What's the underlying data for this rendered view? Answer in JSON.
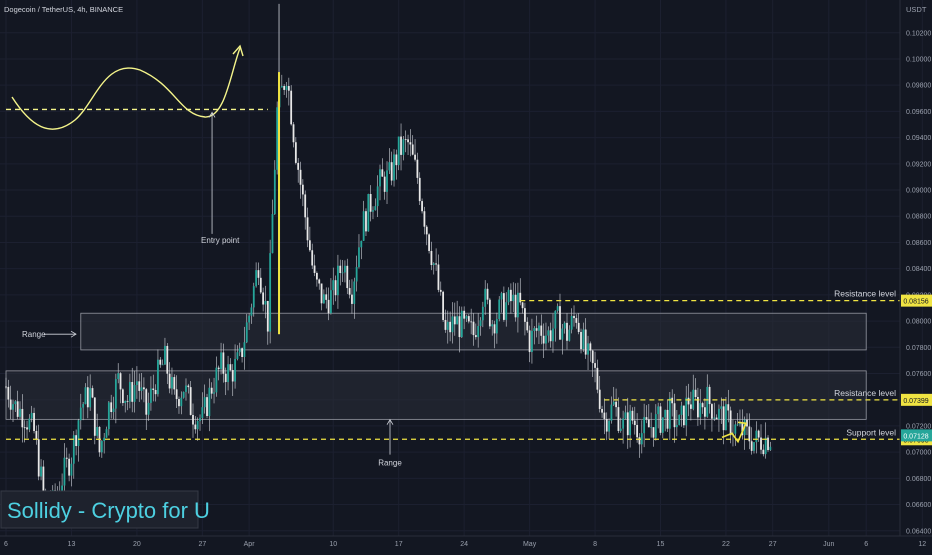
{
  "header": {
    "symbol_line": "Dogecoin / TetherUS, 4h, BINANCE",
    "currency": "USDT"
  },
  "watermark": "Sollidy - Crypto for U",
  "colors": {
    "background": "#131722",
    "up": "#26a69a",
    "down": "#e8e8e8",
    "wick": "#cfd3da",
    "level_line": "#f0e442",
    "curve": "#f4f48a",
    "label_badge": "#f0e442",
    "current_badge": "#26a69a",
    "text": "#d1d4dc",
    "axis_text": "#9aa0ad",
    "zone_fill": "#2a2e39",
    "zone_stroke": "#9598a1",
    "watermark_bg": "#1e222d",
    "watermark_text": "#4dd0e1",
    "watermark_border": "#363a45"
  },
  "chart_data": {
    "type": "candlestick",
    "title": "Dogecoin / TetherUS, 4h, BINANCE",
    "y_unit": "USDT",
    "ylim": [
      0.0636,
      0.1045
    ],
    "y_ticks": [
      "0.06400",
      "0.06600",
      "0.06800",
      "0.07000",
      "0.07200",
      "0.07400",
      "0.07600",
      "0.07800",
      "0.08000",
      "0.08200",
      "0.08400",
      "0.08600",
      "0.08800",
      "0.09000",
      "0.09200",
      "0.09400",
      "0.09600",
      "0.09800",
      "0.10000",
      "0.10200"
    ],
    "x_ticks": [
      {
        "label": "6",
        "x": 0
      },
      {
        "label": "13",
        "x": 7
      },
      {
        "label": "20",
        "x": 14
      },
      {
        "label": "27",
        "x": 21
      },
      {
        "label": "Apr",
        "x": 26
      },
      {
        "label": "10",
        "x": 35
      },
      {
        "label": "17",
        "x": 42
      },
      {
        "label": "24",
        "x": 49
      },
      {
        "label": "May",
        "x": 56
      },
      {
        "label": "8",
        "x": 63
      },
      {
        "label": "15",
        "x": 70
      },
      {
        "label": "22",
        "x": 77
      },
      {
        "label": "27",
        "x": 82
      },
      {
        "label": "Jun",
        "x": 88
      },
      {
        "label": "6",
        "x": 92
      },
      {
        "label": "12",
        "x": 98
      }
    ],
    "path": [
      [
        0,
        0.075
      ],
      [
        1,
        0.0735
      ],
      [
        2,
        0.0728
      ],
      [
        3,
        0.0715
      ],
      [
        4,
        0.0668
      ],
      [
        5,
        0.066
      ],
      [
        6,
        0.068
      ],
      [
        7,
        0.0698
      ],
      [
        8,
        0.0735
      ],
      [
        9,
        0.0745
      ],
      [
        10,
        0.07
      ],
      [
        11,
        0.0735
      ],
      [
        12,
        0.0755
      ],
      [
        13,
        0.074
      ],
      [
        14,
        0.0755
      ],
      [
        15,
        0.073
      ],
      [
        16,
        0.0755
      ],
      [
        17,
        0.077
      ],
      [
        18,
        0.074
      ],
      [
        19,
        0.075
      ],
      [
        20,
        0.073
      ],
      [
        21,
        0.0725
      ],
      [
        22,
        0.075
      ],
      [
        23,
        0.0765
      ],
      [
        24,
        0.076
      ],
      [
        25,
        0.077
      ],
      [
        26,
        0.0805
      ],
      [
        27,
        0.0845
      ],
      [
        28,
        0.08
      ],
      [
        29,
        0.096
      ],
      [
        30,
        0.099
      ],
      [
        31,
        0.093
      ],
      [
        32,
        0.088
      ],
      [
        33,
        0.083
      ],
      [
        34,
        0.0815
      ],
      [
        35,
        0.082
      ],
      [
        36,
        0.0845
      ],
      [
        37,
        0.0825
      ],
      [
        38,
        0.087
      ],
      [
        39,
        0.089
      ],
      [
        40,
        0.0905
      ],
      [
        41,
        0.091
      ],
      [
        42,
        0.093
      ],
      [
        43,
        0.0935
      ],
      [
        44,
        0.091
      ],
      [
        45,
        0.087
      ],
      [
        46,
        0.0835
      ],
      [
        47,
        0.079
      ],
      [
        48,
        0.08
      ],
      [
        49,
        0.0795
      ],
      [
        50,
        0.079
      ],
      [
        51,
        0.082
      ],
      [
        52,
        0.08
      ],
      [
        53,
        0.081
      ],
      [
        54,
        0.0815
      ],
      [
        55,
        0.081
      ],
      [
        56,
        0.0785
      ],
      [
        57,
        0.0795
      ],
      [
        58,
        0.079
      ],
      [
        59,
        0.08
      ],
      [
        60,
        0.079
      ],
      [
        61,
        0.0805
      ],
      [
        62,
        0.0775
      ],
      [
        63,
        0.076
      ],
      [
        64,
        0.0725
      ],
      [
        65,
        0.0735
      ],
      [
        66,
        0.072
      ],
      [
        67,
        0.0725
      ],
      [
        68,
        0.0715
      ],
      [
        69,
        0.072
      ],
      [
        70,
        0.0725
      ],
      [
        71,
        0.073
      ],
      [
        72,
        0.072
      ],
      [
        73,
        0.074
      ],
      [
        74,
        0.0735
      ],
      [
        75,
        0.074
      ],
      [
        76,
        0.073
      ],
      [
        77,
        0.0725
      ],
      [
        78,
        0.0718
      ],
      [
        79,
        0.0715
      ],
      [
        80,
        0.0708
      ],
      [
        81,
        0.071
      ],
      [
        82,
        0.0712
      ]
    ],
    "levels": [
      {
        "label": "Resistance level",
        "price": 0.08156,
        "badge": "0.08156",
        "x_start": 55
      },
      {
        "label": "Resistance level",
        "price": 0.07399,
        "badge": "0.07399",
        "x_start": 64
      },
      {
        "label": "Support level",
        "price": 0.07098,
        "badge": "0.07098",
        "x_start": 0
      }
    ],
    "entry_line": {
      "price": 0.09615,
      "x_start": 0,
      "x_end": 28
    },
    "current_price": {
      "price": 0.07128,
      "badge": "0.07128"
    },
    "zones": [
      {
        "label": "Range",
        "top": 0.0806,
        "bottom": 0.0778,
        "x_start": 8,
        "x_end": 92
      },
      {
        "label": "Range",
        "top": 0.0762,
        "bottom": 0.0725,
        "x_start": 0,
        "x_end": 92
      }
    ],
    "annotations": [
      {
        "text": "Entry point",
        "x": 23,
        "price": 0.0862
      },
      {
        "text": "Range",
        "x": 3,
        "price": 0.079
      },
      {
        "text": "Range",
        "x": 43,
        "price": 0.0692
      }
    ]
  }
}
